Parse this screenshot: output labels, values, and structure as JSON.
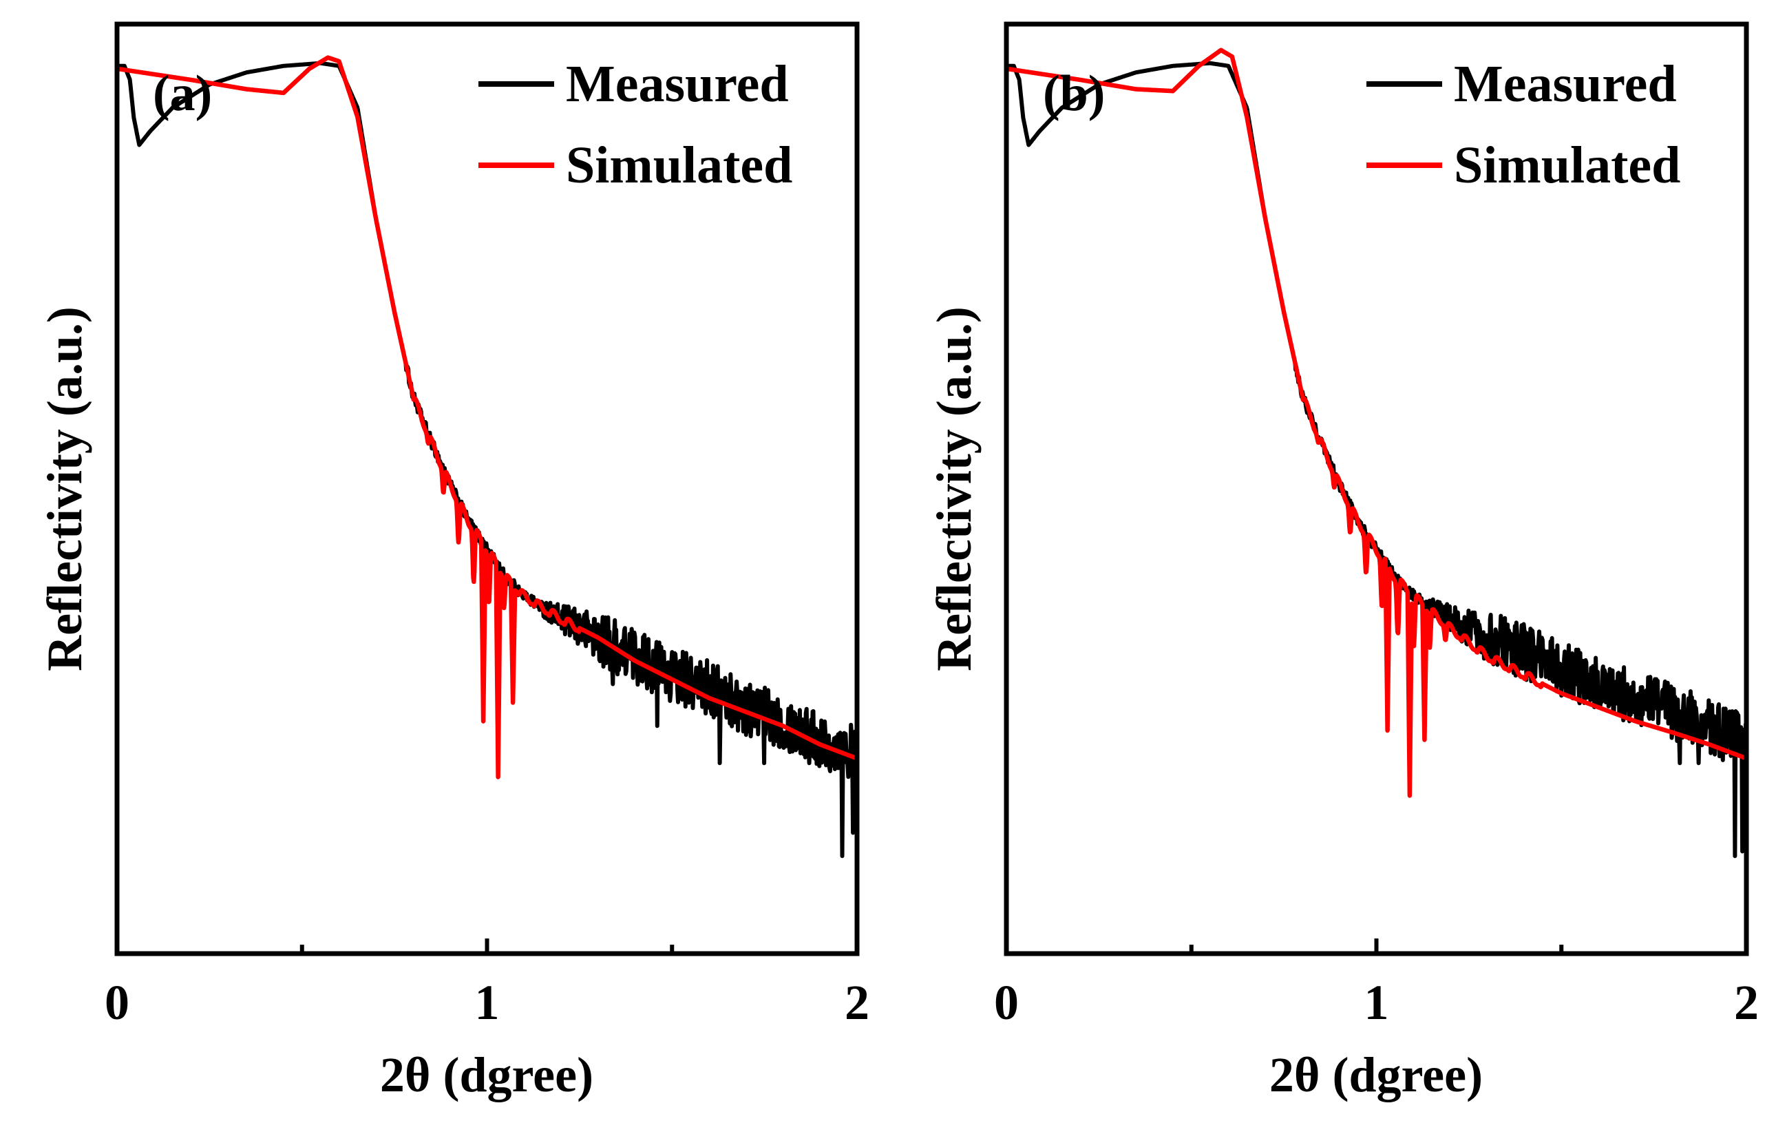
{
  "chart_data": [
    {
      "type": "line",
      "panel": "(a)",
      "xlabel": "2θ (dgree)",
      "ylabel": "Reflectivity (a.u.)",
      "xlim": [
        0,
        2
      ],
      "ylim": [
        0,
        1
      ],
      "xticks": [
        0,
        1,
        2
      ],
      "xticklabels": [
        "0",
        "1",
        "2"
      ],
      "minor_xticks": [
        0.5,
        1.5
      ],
      "legend_position": "top-right",
      "series": [
        {
          "name": "Measured",
          "color": "#000000",
          "points": [
            [
              0,
              0.955
            ],
            [
              0.02,
              0.955
            ],
            [
              0.035,
              0.94
            ],
            [
              0.045,
              0.9
            ],
            [
              0.06,
              0.87
            ],
            [
              0.09,
              0.885
            ],
            [
              0.15,
              0.91
            ],
            [
              0.25,
              0.935
            ],
            [
              0.35,
              0.948
            ],
            [
              0.45,
              0.955
            ],
            [
              0.55,
              0.958
            ],
            [
              0.6,
              0.955
            ],
            [
              0.65,
              0.91
            ],
            [
              0.7,
              0.79
            ],
            [
              0.75,
              0.69
            ],
            [
              0.8,
              0.6
            ],
            [
              0.85,
              0.55
            ],
            [
              0.9,
              0.505
            ],
            [
              0.95,
              0.465
            ],
            [
              1.0,
              0.435
            ],
            [
              1.05,
              0.405
            ],
            [
              1.1,
              0.385
            ],
            [
              1.2,
              0.36
            ],
            [
              1.3,
              0.34
            ],
            [
              1.4,
              0.32
            ],
            [
              1.5,
              0.3
            ],
            [
              1.6,
              0.285
            ],
            [
              1.7,
              0.265
            ],
            [
              1.8,
              0.25
            ],
            [
              1.9,
              0.23
            ],
            [
              2.0,
              0.215
            ]
          ],
          "noise": {
            "start": 1.15,
            "amplitude": 0.03,
            "dips": [
              [
                1.29,
                0.36
              ],
              [
                1.34,
                0.29
              ],
              [
                1.46,
                0.245
              ],
              [
                1.63,
                0.205
              ],
              [
                1.75,
                0.205
              ],
              [
                1.87,
                0.205
              ],
              [
                1.96,
                0.105
              ],
              [
                1.99,
                0.13
              ]
            ]
          }
        },
        {
          "name": "Simulated",
          "color": "#ff0000",
          "points": [
            [
              0,
              0.952
            ],
            [
              0.2,
              0.94
            ],
            [
              0.35,
              0.93
            ],
            [
              0.45,
              0.926
            ],
            [
              0.52,
              0.952
            ],
            [
              0.57,
              0.964
            ],
            [
              0.6,
              0.96
            ],
            [
              0.65,
              0.9
            ],
            [
              0.7,
              0.79
            ],
            [
              0.75,
              0.69
            ],
            [
              0.8,
              0.6
            ],
            [
              0.85,
              0.55
            ],
            [
              0.9,
              0.505
            ],
            [
              0.95,
              0.465
            ],
            [
              1.0,
              0.435
            ],
            [
              1.05,
              0.405
            ],
            [
              1.1,
              0.385
            ],
            [
              1.2,
              0.36
            ],
            [
              1.3,
              0.34
            ],
            [
              1.4,
              0.315
            ],
            [
              1.5,
              0.295
            ],
            [
              1.6,
              0.275
            ],
            [
              1.7,
              0.26
            ],
            [
              1.8,
              0.245
            ],
            [
              1.9,
              0.225
            ],
            [
              2.0,
              0.21
            ]
          ],
          "oscillation": {
            "start": 0.8,
            "end": 1.25,
            "period": 0.041,
            "depths": [
              [
                0.99,
                0.25
              ],
              [
                1.03,
                0.19
              ],
              [
                1.07,
                0.27
              ]
            ]
          }
        }
      ]
    },
    {
      "type": "line",
      "panel": "(b)",
      "xlabel": "2θ (dgree)",
      "ylabel": "Reflectivity (a.u.)",
      "xlim": [
        0,
        2
      ],
      "ylim": [
        0,
        1
      ],
      "xticks": [
        0,
        1,
        2
      ],
      "xticklabels": [
        "0",
        "1",
        "2"
      ],
      "minor_xticks": [
        0.5,
        1.5
      ],
      "legend_position": "top-right",
      "series": [
        {
          "name": "Measured",
          "color": "#000000",
          "points": [
            [
              0,
              0.955
            ],
            [
              0.02,
              0.955
            ],
            [
              0.035,
              0.94
            ],
            [
              0.045,
              0.9
            ],
            [
              0.06,
              0.87
            ],
            [
              0.09,
              0.885
            ],
            [
              0.15,
              0.91
            ],
            [
              0.25,
              0.935
            ],
            [
              0.35,
              0.948
            ],
            [
              0.45,
              0.955
            ],
            [
              0.55,
              0.958
            ],
            [
              0.6,
              0.955
            ],
            [
              0.65,
              0.91
            ],
            [
              0.7,
              0.79
            ],
            [
              0.75,
              0.69
            ],
            [
              0.8,
              0.6
            ],
            [
              0.85,
              0.55
            ],
            [
              0.9,
              0.505
            ],
            [
              0.95,
              0.465
            ],
            [
              1.0,
              0.435
            ],
            [
              1.05,
              0.405
            ],
            [
              1.1,
              0.385
            ],
            [
              1.2,
              0.36
            ],
            [
              1.3,
              0.34
            ],
            [
              1.4,
              0.325
            ],
            [
              1.5,
              0.305
            ],
            [
              1.6,
              0.29
            ],
            [
              1.7,
              0.275
            ],
            [
              1.8,
              0.26
            ],
            [
              1.9,
              0.245
            ],
            [
              2.0,
              0.225
            ]
          ],
          "noise": {
            "start": 1.15,
            "amplitude": 0.03,
            "dips": [
              [
                1.6,
                0.265
              ],
              [
                1.82,
                0.205
              ],
              [
                1.87,
                0.205
              ],
              [
                1.97,
                0.105
              ],
              [
                1.99,
                0.11
              ]
            ]
          }
        },
        {
          "name": "Simulated",
          "color": "#ff0000",
          "points": [
            [
              0,
              0.952
            ],
            [
              0.2,
              0.94
            ],
            [
              0.35,
              0.93
            ],
            [
              0.45,
              0.928
            ],
            [
              0.52,
              0.955
            ],
            [
              0.58,
              0.972
            ],
            [
              0.61,
              0.965
            ],
            [
              0.65,
              0.9
            ],
            [
              0.7,
              0.79
            ],
            [
              0.75,
              0.69
            ],
            [
              0.8,
              0.6
            ],
            [
              0.85,
              0.55
            ],
            [
              0.9,
              0.505
            ],
            [
              0.95,
              0.465
            ],
            [
              1.0,
              0.435
            ],
            [
              1.05,
              0.405
            ],
            [
              1.1,
              0.385
            ],
            [
              1.2,
              0.35
            ],
            [
              1.3,
              0.32
            ],
            [
              1.4,
              0.3
            ],
            [
              1.5,
              0.28
            ],
            [
              1.6,
              0.265
            ],
            [
              1.7,
              0.25
            ],
            [
              1.8,
              0.238
            ],
            [
              1.9,
              0.225
            ],
            [
              2.0,
              0.21
            ]
          ],
          "oscillation": {
            "start": 0.8,
            "end": 1.45,
            "period": 0.043,
            "depths": [
              [
                1.03,
                0.24
              ],
              [
                1.09,
                0.17
              ],
              [
                1.13,
                0.23
              ]
            ]
          }
        }
      ]
    }
  ]
}
